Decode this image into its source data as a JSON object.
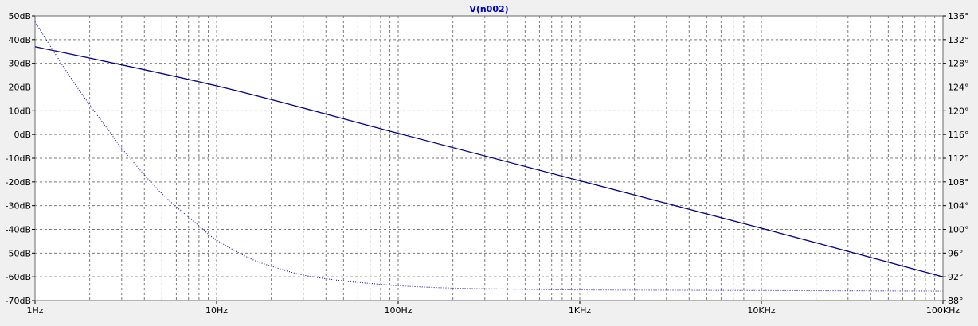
{
  "chart_data": {
    "type": "line",
    "title": "V(n002)",
    "x_scale": "log",
    "xlim": [
      1,
      100000
    ],
    "x_ticks": [
      {
        "value": 1,
        "label": "1Hz"
      },
      {
        "value": 10,
        "label": "10Hz"
      },
      {
        "value": 100,
        "label": "100Hz"
      },
      {
        "value": 1000,
        "label": "1KHz"
      },
      {
        "value": 10000,
        "label": "10KHz"
      },
      {
        "value": 100000,
        "label": "100KHz"
      }
    ],
    "ylim_left": [
      -70,
      50
    ],
    "y_ticks_left": [
      {
        "value": 50,
        "label": "50dB"
      },
      {
        "value": 40,
        "label": "40dB"
      },
      {
        "value": 30,
        "label": "30dB"
      },
      {
        "value": 20,
        "label": "20dB"
      },
      {
        "value": 10,
        "label": "10dB"
      },
      {
        "value": 0,
        "label": "0dB"
      },
      {
        "value": -10,
        "label": "-10dB"
      },
      {
        "value": -20,
        "label": "-20dB"
      },
      {
        "value": -30,
        "label": "-30dB"
      },
      {
        "value": -40,
        "label": "-40dB"
      },
      {
        "value": -50,
        "label": "-50dB"
      },
      {
        "value": -60,
        "label": "-60dB"
      },
      {
        "value": -70,
        "label": "-70dB"
      }
    ],
    "ylim_right": [
      88,
      136
    ],
    "y_ticks_right": [
      {
        "value": 136,
        "label": "136°"
      },
      {
        "value": 132,
        "label": "132°"
      },
      {
        "value": 128,
        "label": "128°"
      },
      {
        "value": 124,
        "label": "124°"
      },
      {
        "value": 120,
        "label": "120°"
      },
      {
        "value": 116,
        "label": "116°"
      },
      {
        "value": 112,
        "label": "112°"
      },
      {
        "value": 108,
        "label": "108°"
      },
      {
        "value": 104,
        "label": "104°"
      },
      {
        "value": 100,
        "label": "100°"
      },
      {
        "value": 96,
        "label": "96°"
      },
      {
        "value": 92,
        "label": "92°"
      },
      {
        "value": 88,
        "label": "88°"
      }
    ],
    "grid": true,
    "series": [
      {
        "axis": "left",
        "style": "solid",
        "color": "#00008b",
        "x": [
          1,
          10,
          100,
          1000,
          10000,
          100000
        ],
        "y": [
          37,
          20.5,
          0.5,
          -19.5,
          -39.5,
          -60
        ]
      },
      {
        "axis": "right",
        "style": "dotted",
        "color": "#1010b0",
        "x": [
          1,
          1.5,
          2,
          2.5,
          3,
          4,
          5,
          6,
          7,
          8,
          10,
          15,
          20,
          30,
          50,
          70,
          100,
          200,
          500,
          1000,
          10000,
          100000
        ],
        "y": [
          135,
          126.5,
          121,
          117,
          113.7,
          109.2,
          106,
          103.8,
          102.1,
          100.6,
          98.2,
          95.2,
          93.8,
          92.3,
          91.3,
          90.9,
          90.5,
          90.1,
          89.9,
          89.8,
          89.7,
          89.6
        ]
      }
    ]
  }
}
